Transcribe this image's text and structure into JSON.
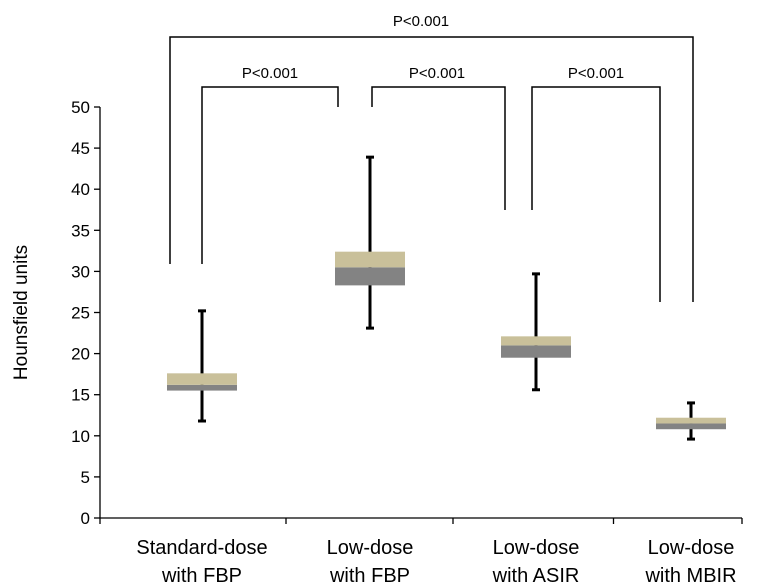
{
  "chart_data": {
    "type": "box",
    "ylabel": "Hounsfield units",
    "ylim": [
      0,
      50
    ],
    "yticks": [
      0,
      5,
      10,
      15,
      20,
      25,
      30,
      35,
      40,
      45,
      50
    ],
    "categories": [
      [
        "Standard-dose",
        "with FBP"
      ],
      [
        "Low-dose",
        "with FBP"
      ],
      [
        "Low-dose",
        "with ASIR"
      ],
      [
        "Low-dose",
        "with MBIR"
      ]
    ],
    "boxes": [
      {
        "min": 11.8,
        "q1": 15.5,
        "median": 16.2,
        "q3": 17.6,
        "max": 25.2
      },
      {
        "min": 23.1,
        "q1": 28.3,
        "median": 30.5,
        "q3": 32.4,
        "max": 43.9
      },
      {
        "min": 15.6,
        "q1": 19.5,
        "median": 21.0,
        "q3": 22.1,
        "max": 29.7
      },
      {
        "min": 9.6,
        "q1": 10.8,
        "median": 11.5,
        "q3": 12.2,
        "max": 14.0
      }
    ],
    "colors": {
      "upper_box": "#c9c09a",
      "lower_box": "#838383"
    },
    "comparisons": [
      {
        "from": 0,
        "to": 1,
        "label": "P<0.001"
      },
      {
        "from": 1,
        "to": 2,
        "label": "P<0.001"
      },
      {
        "from": 2,
        "to": 3,
        "label": "P<0.001"
      },
      {
        "from": 0,
        "to": 3,
        "label": "P<0.001"
      }
    ]
  }
}
